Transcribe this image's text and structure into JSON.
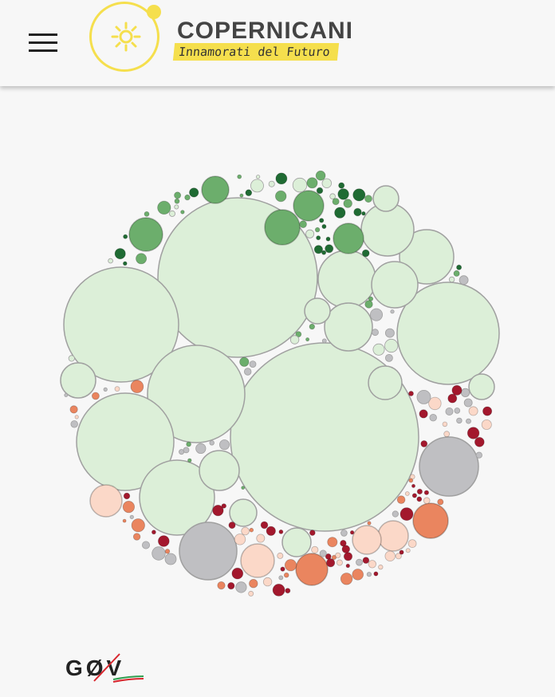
{
  "header": {
    "menu_icon": "hamburger-menu-icon",
    "logo": {
      "title": "COPERNICANI",
      "tagline": "Innamorati del Futuro",
      "icon": "sun-icon",
      "accent_color": "#f5df4d"
    }
  },
  "footer": {
    "logo_text": "GØV",
    "logo_stripe_colors": [
      "#2e9e4f",
      "#ffffff",
      "#d8262e"
    ]
  },
  "chart_data": {
    "type": "bubble-pack",
    "palette": {
      "dark_green": "#1f6b33",
      "mid_green": "#6cae6c",
      "light_green": "#dcefd8",
      "grey": "#bfbfc2",
      "light_red": "#fbd8c8",
      "orange": "#ea855f",
      "dark_red": "#a3182d",
      "outline": "#a0a0a0"
    }
  }
}
